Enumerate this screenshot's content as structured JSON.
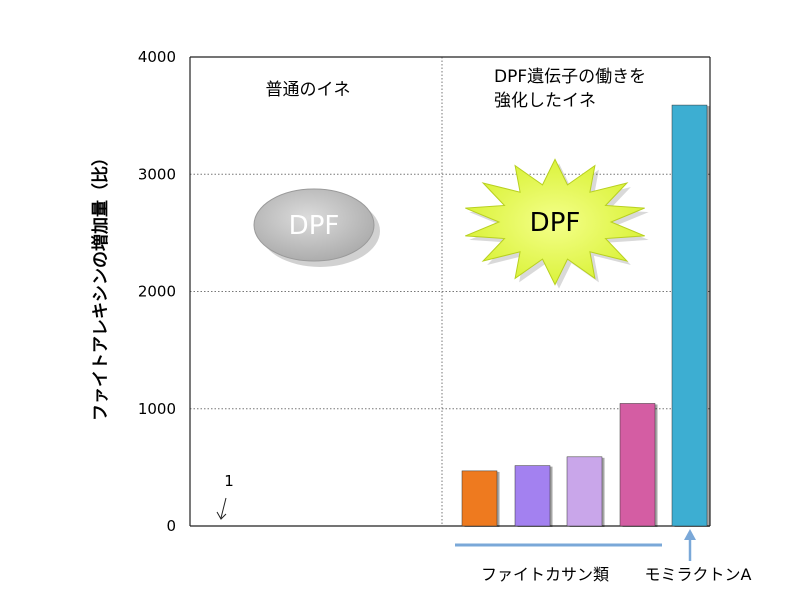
{
  "chart_data": {
    "type": "bar",
    "title": "",
    "ylabel": "ファイトアレキシンの増加量（比）",
    "ylim": [
      0,
      4000
    ],
    "yticks": [
      0,
      1000,
      2000,
      3000,
      4000
    ],
    "grid": true,
    "panels": [
      {
        "label_lines": [
          "普通のイネ"
        ],
        "badge": "DPF",
        "badge_style": "gray-ellipse"
      },
      {
        "label_lines": [
          "DPF遺伝子の働きを",
          "強化したイネ"
        ],
        "badge": "DPF",
        "badge_style": "yellow-burst"
      }
    ],
    "annotation": "1",
    "bars": [
      {
        "group": "ファイトカサン類",
        "value": 470,
        "color": "#ee7a1f"
      },
      {
        "group": "ファイトカサン類",
        "value": 515,
        "color": "#a381f0"
      },
      {
        "group": "ファイトカサン類",
        "value": 590,
        "color": "#c9a6ea"
      },
      {
        "group": "ファイトカサン類",
        "value": 1045,
        "color": "#d45da3"
      },
      {
        "group": "モミラクトンA",
        "value": 3590,
        "color": "#3daed2"
      }
    ],
    "groups": [
      "ファイトカサン類",
      "モミラクトンA"
    ],
    "colors": {
      "group_bracket": "#7aa8d8"
    }
  }
}
